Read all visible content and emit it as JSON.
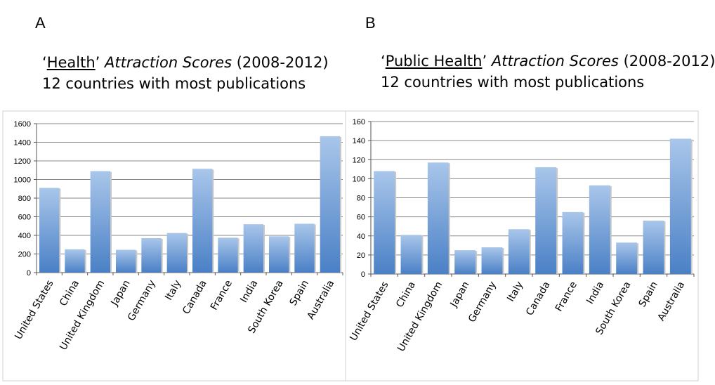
{
  "panels": {
    "A": {
      "letter": "A",
      "title": {
        "open_quote": "‘",
        "underlined": "Health",
        "close_quote": "’",
        "italic": "Attraction Scores",
        "years": "(2008-2012)",
        "subtitle": "12 countries with most publications"
      }
    },
    "B": {
      "letter": "B",
      "title": {
        "open_quote": "‘",
        "underlined": "Public Health",
        "close_quote": "’",
        "italic": "Attraction Scores",
        "years": "(2008-2012)",
        "subtitle": "12 countries with most publications"
      }
    }
  },
  "chart_data": [
    {
      "type": "bar",
      "title": "‘Health’ Attraction Scores (2008-2012)",
      "categories": [
        "United States",
        "China",
        "United Kingdom",
        "Japan",
        "Germany",
        "Italy",
        "Canada",
        "France",
        "India",
        "South Korea",
        "Spain",
        "Australia"
      ],
      "values": [
        910,
        250,
        1090,
        245,
        370,
        425,
        1115,
        375,
        520,
        390,
        525,
        1465
      ],
      "ylim": [
        0,
        1600
      ],
      "yticks": [
        0,
        200,
        400,
        600,
        800,
        1000,
        1200,
        1400,
        1600
      ],
      "grid": true,
      "colors": {
        "bar_top": "#a9c6ea",
        "bar_bottom": "#4a80c6",
        "grid": "#8a8a8a"
      }
    },
    {
      "type": "bar",
      "title": "‘Public Health’ Attraction Scores (2008-2012)",
      "categories": [
        "United States",
        "China",
        "United Kingdom",
        "Japan",
        "Germany",
        "Italy",
        "Canada",
        "France",
        "India",
        "South Korea",
        "Spain",
        "Australia"
      ],
      "values": [
        108,
        41,
        117,
        25,
        28,
        47,
        112,
        65,
        93,
        33,
        56,
        142
      ],
      "ylim": [
        0,
        160
      ],
      "yticks": [
        0,
        20,
        40,
        60,
        80,
        100,
        120,
        140,
        160
      ],
      "grid": true,
      "colors": {
        "bar_top": "#a9c6ea",
        "bar_bottom": "#4a80c6",
        "grid": "#8a8a8a"
      }
    }
  ]
}
